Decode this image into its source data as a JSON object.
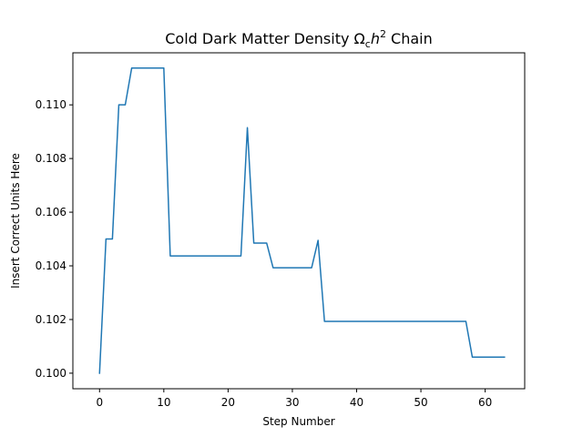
{
  "chart_data": {
    "type": "line",
    "title_main": "Cold Dark Matter Density Ω",
    "title_sub": "c",
    "title_mid": "h",
    "title_sup": "2",
    "title_end": " Chain",
    "xlabel": "Step Number",
    "ylabel": "Insert Correct Units Here",
    "xlim": [
      -4.15,
      66.15
    ],
    "ylim": [
      0.09942,
      0.11194
    ],
    "xticks": [
      0,
      10,
      20,
      30,
      40,
      50,
      60
    ],
    "xtick_labels": [
      "0",
      "10",
      "20",
      "30",
      "40",
      "50",
      "60"
    ],
    "yticks": [
      0.1,
      0.102,
      0.104,
      0.106,
      0.108,
      0.11
    ],
    "ytick_labels": [
      "0.100",
      "0.102",
      "0.104",
      "0.106",
      "0.108",
      "0.110"
    ],
    "grid": false,
    "color": "#1f77b4",
    "series": [
      {
        "x": [
          0,
          1,
          2,
          3,
          4,
          5,
          6,
          7,
          8,
          9,
          10,
          11,
          12,
          13,
          14,
          15,
          16,
          17,
          18,
          19,
          20,
          21,
          22,
          23,
          24,
          25,
          26,
          27,
          28,
          29,
          30,
          31,
          32,
          33,
          34,
          35,
          36,
          37,
          38,
          39,
          40,
          41,
          42,
          43,
          44,
          45,
          46,
          47,
          48,
          49,
          50,
          51,
          52,
          53,
          54,
          55,
          56,
          57,
          58,
          59,
          60,
          61,
          62,
          63
        ],
        "values": [
          0.1,
          0.105,
          0.105,
          0.11,
          0.11,
          0.11137,
          0.11137,
          0.11137,
          0.11137,
          0.11137,
          0.11137,
          0.10437,
          0.10437,
          0.10437,
          0.10437,
          0.10437,
          0.10437,
          0.10437,
          0.10437,
          0.10437,
          0.10437,
          0.10437,
          0.10437,
          0.10915,
          0.10485,
          0.10485,
          0.10485,
          0.10393,
          0.10393,
          0.10393,
          0.10393,
          0.10393,
          0.10393,
          0.10393,
          0.10495,
          0.10193,
          0.10193,
          0.10193,
          0.10193,
          0.10193,
          0.10193,
          0.10193,
          0.10193,
          0.10193,
          0.10193,
          0.10193,
          0.10193,
          0.10193,
          0.10193,
          0.10193,
          0.10193,
          0.10193,
          0.10193,
          0.10193,
          0.10193,
          0.10193,
          0.10193,
          0.10193,
          0.1006,
          0.1006,
          0.1006,
          0.1006,
          0.1006,
          0.1006
        ]
      }
    ]
  }
}
